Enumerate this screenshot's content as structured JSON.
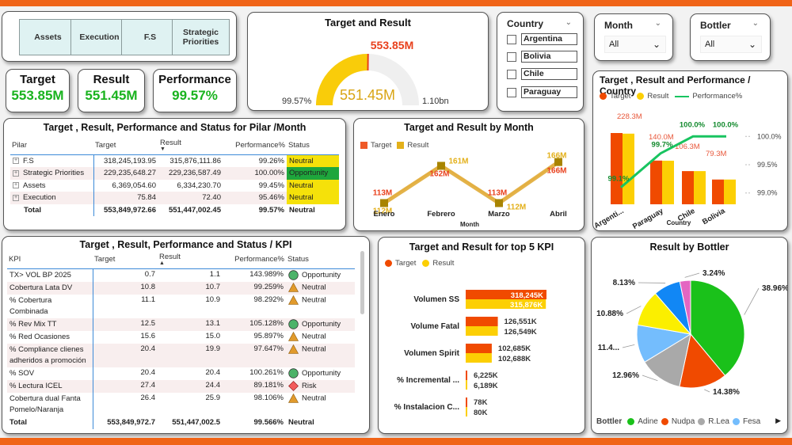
{
  "pillar_buttons": [
    "Assets",
    "Execution",
    "F.S",
    "Strategic Priorities"
  ],
  "kpi_cards": [
    {
      "label": "Target",
      "value": "553.85M"
    },
    {
      "label": "Result",
      "value": "551.45M"
    },
    {
      "label": "Performance",
      "value": "99.57%"
    }
  ],
  "gauge": {
    "title": "Target and Result",
    "value_label": "551.45M",
    "target_label": "553.85M",
    "min_label": "99.57%",
    "max_label": "1.10bn",
    "value": 551.45,
    "target": 553.85,
    "max": 1100,
    "colors": {
      "fill": "#f9cc0a",
      "track": "#efefef",
      "target": "#e8401c"
    }
  },
  "country_slicer": {
    "title": "Country",
    "options": [
      "Argentina",
      "Bolivia",
      "Chile",
      "Paraguay"
    ]
  },
  "month_slicer": {
    "title": "Month",
    "selected": "All"
  },
  "bottler_slicer": {
    "title": "Bottler",
    "selected": "All"
  },
  "pilar_table": {
    "title": "Target , Result, Performance and Status for Pilar /Month",
    "headers": [
      "Pilar",
      "Target",
      "Result",
      "Performance%",
      "Status"
    ],
    "rows": [
      {
        "pilar": "F.S",
        "target": "318,245,193.95",
        "result": "315,876,111.86",
        "perf": "99.26%",
        "status": "Neutral"
      },
      {
        "pilar": "Strategic Priorities",
        "target": "229,235,648.27",
        "result": "229,236,587.49",
        "perf": "100.00%",
        "status": "Opportunity"
      },
      {
        "pilar": "Assets",
        "target": "6,369,054.60",
        "result": "6,334,230.70",
        "perf": "99.45%",
        "status": "Neutral"
      },
      {
        "pilar": "Execution",
        "target": "75.84",
        "result": "72.40",
        "perf": "95.46%",
        "status": "Neutral"
      }
    ],
    "total": {
      "label": "Total",
      "target": "553,849,972.66",
      "result": "551,447,002.45",
      "perf": "99.57%",
      "status": "Neutral"
    }
  },
  "kpi_table": {
    "title": "Target , Result, Performance and Status / KPI",
    "headers": [
      "KPI",
      "Target",
      "Result",
      "Performance%",
      "Status"
    ],
    "rows": [
      {
        "kpi": "TX> VOL BP 2025",
        "target": "0.7",
        "result": "1.1",
        "perf": "143.989%",
        "status": "Opportunity",
        "icon": "circle"
      },
      {
        "kpi": "Cobertura Lata DV",
        "target": "10.8",
        "result": "10.7",
        "perf": "99.259%",
        "status": "Neutral",
        "icon": "triangle"
      },
      {
        "kpi": "% Cobertura Combinada",
        "target": "11.1",
        "result": "10.9",
        "perf": "98.292%",
        "status": "Neutral",
        "icon": "triangle"
      },
      {
        "kpi": "% Rev Mix TT",
        "target": "12.5",
        "result": "13.1",
        "perf": "105.128%",
        "status": "Opportunity",
        "icon": "circle"
      },
      {
        "kpi": "% Red Ocasiones",
        "target": "15.6",
        "result": "15.0",
        "perf": "95.897%",
        "status": "Neutral",
        "icon": "triangle"
      },
      {
        "kpi": "% Compliance clienes adheridos a promoción",
        "target": "20.4",
        "result": "19.9",
        "perf": "97.647%",
        "status": "Neutral",
        "icon": "triangle"
      },
      {
        "kpi": "% SOV",
        "target": "20.4",
        "result": "20.4",
        "perf": "100.261%",
        "status": "Opportunity",
        "icon": "circle"
      },
      {
        "kpi": "% Lectura ICEL",
        "target": "27.4",
        "result": "24.4",
        "perf": "89.181%",
        "status": "Risk",
        "icon": "diamond"
      },
      {
        "kpi": "Cobertura dual Fanta Pomelo/Naranja",
        "target": "26.4",
        "result": "25.9",
        "perf": "98.106%",
        "status": "Neutral",
        "icon": "triangle"
      }
    ],
    "total": {
      "label": "Total",
      "target": "553,849,972.7",
      "result": "551,447,002.5",
      "perf": "99.566%",
      "status": "Neutral"
    }
  },
  "chart_data": [
    {
      "type": "line",
      "title": "Target and Result by Month",
      "xlabel": "Month",
      "categories": [
        "Enero",
        "Febrero",
        "Marzo",
        "Abril"
      ],
      "legend": [
        "Target",
        "Result"
      ],
      "series": [
        {
          "name": "Target",
          "values": [
            113,
            162,
            113,
            166
          ],
          "labels": [
            "113M",
            "162M",
            "113M",
            "166M"
          ],
          "color": "#e8401c"
        },
        {
          "name": "Result",
          "values": [
            112,
            161,
            112,
            166
          ],
          "labels": [
            "112M",
            "161M",
            "112M",
            "166M"
          ],
          "color": "#e3b01a"
        }
      ]
    },
    {
      "type": "bar",
      "title": "Target , Result and Performance / Country",
      "xlabel": "Country",
      "categories": [
        "Argenti...",
        "Paraguay",
        "Chile",
        "Bolivia"
      ],
      "legend": [
        "Target",
        "Result",
        "Performance%"
      ],
      "series": [
        {
          "name": "Target",
          "values": [
            228.3,
            140.0,
            106.3,
            79.3
          ],
          "color": "#f04a00"
        },
        {
          "name": "Result",
          "values": [
            226.3,
            139.6,
            106.3,
            79.3
          ],
          "color": "#fccf04"
        },
        {
          "name": "Performance%",
          "values": [
            99.1,
            99.7,
            100.0,
            100.0
          ],
          "color": "#18c460"
        }
      ],
      "bar_labels": [
        "228.3M",
        "140.0M",
        "106.3M",
        "79.3M"
      ],
      "perf_labels": [
        "99.1%",
        "99.7%",
        "100.0%",
        "100.0%"
      ],
      "y2_ticks": [
        "100.0%",
        "99.5%",
        "99.0%"
      ],
      "y2lim": [
        98.8,
        100.2
      ]
    },
    {
      "type": "bar",
      "title": "Target and Result for top 5 KPI",
      "orientation": "horizontal",
      "categories": [
        "Volumen SS",
        "Volume Fatal",
        "Volumen Spirit",
        "% Incremental ...",
        "% Instalacion C..."
      ],
      "legend": [
        "Target",
        "Result"
      ],
      "series": [
        {
          "name": "Target",
          "values": [
            318245,
            126551,
            102685,
            6225,
            78
          ],
          "labels": [
            "318,245K",
            "126,551K",
            "102,685K",
            "6,225K",
            "78K"
          ],
          "color": "#f04a00"
        },
        {
          "name": "Result",
          "values": [
            315876,
            126549,
            102688,
            6189,
            80
          ],
          "labels": [
            "315,876K",
            "126,549K",
            "102,688K",
            "6,189K",
            "80K"
          ],
          "color": "#fccf04"
        }
      ]
    },
    {
      "type": "pie",
      "title": "Result by Bottler",
      "legend_title": "Bottler",
      "legend": [
        "Adine",
        "Nudpa",
        "R.Lea",
        "Fesa"
      ],
      "slices": [
        {
          "name": "Adine",
          "value": 38.96,
          "label": "38.96%",
          "color": "#1ac11a"
        },
        {
          "name": "Nudpa",
          "value": 14.38,
          "label": "14.38%",
          "color": "#f04a00"
        },
        {
          "name": "R.Lea",
          "value": 12.96,
          "label": "12.96%",
          "color": "#a9a9a9"
        },
        {
          "name": "Fesa",
          "value": 11.45,
          "label": "11.4...",
          "color": "#74bdfd"
        },
        {
          "name": "",
          "value": 10.88,
          "label": "10.88%",
          "color": "#fbef00"
        },
        {
          "name": "",
          "value": 8.13,
          "label": "8.13%",
          "color": "#1187f5"
        },
        {
          "name": "",
          "value": 3.24,
          "label": "3.24%",
          "color": "#e466c2"
        }
      ]
    }
  ]
}
